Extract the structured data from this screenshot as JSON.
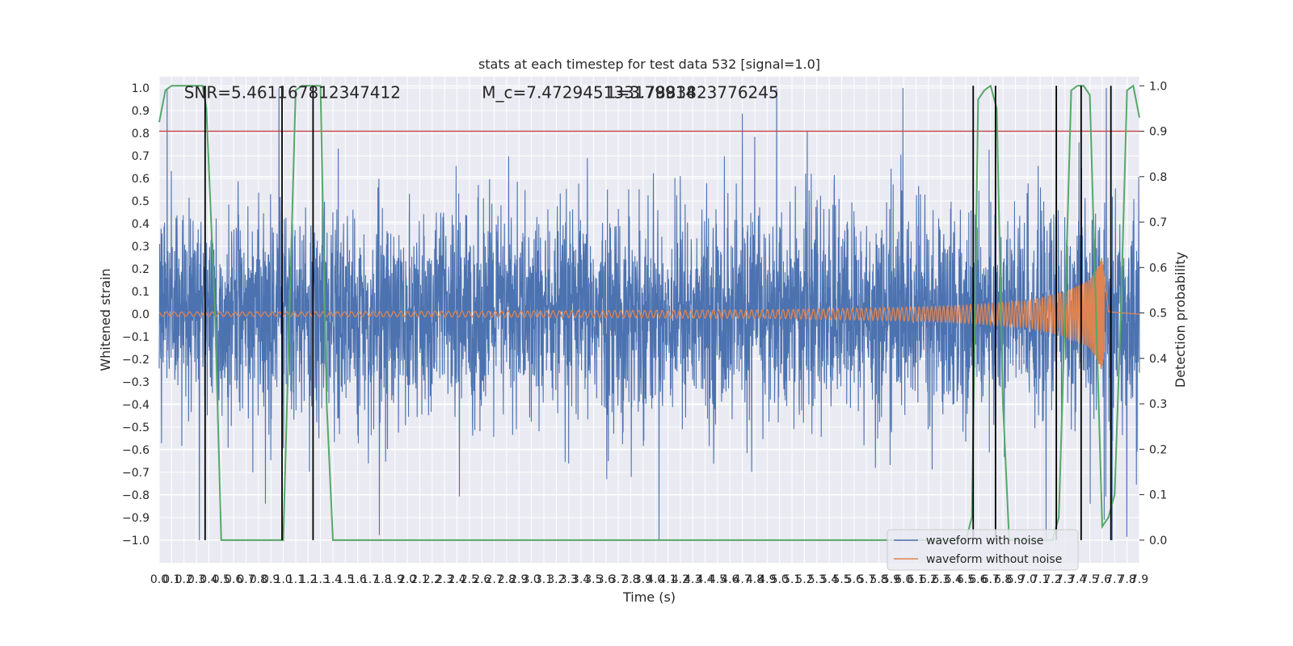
{
  "chart_data": {
    "type": "line",
    "title": "stats at each timestep for test data 532 [signal=1.0]",
    "xlabel": "Time (s)",
    "ylabel": "Whitened strain",
    "y2label": "Detection probability",
    "xlim": [
      0.0,
      7.9
    ],
    "ylim": [
      -1.1,
      1.05
    ],
    "y2lim": [
      -0.05,
      1.02
    ],
    "xticks": [
      "0.0",
      "0.1",
      "0.2",
      "0.3",
      "0.4",
      "0.5",
      "0.6",
      "0.7",
      "0.8",
      "0.9",
      "1.0",
      "1.1",
      "1.2",
      "1.3",
      "1.4",
      "1.5",
      "1.6",
      "1.7",
      "1.8",
      "1.9",
      "2.0",
      "2.1",
      "2.2",
      "2.3",
      "2.4",
      "2.5",
      "2.6",
      "2.7",
      "2.8",
      "2.9",
      "3.0",
      "3.1",
      "3.2",
      "3.3",
      "3.4",
      "3.5",
      "3.6",
      "3.7",
      "3.8",
      "3.9",
      "4.0",
      "4.1",
      "4.2",
      "4.3",
      "4.4",
      "4.5",
      "4.6",
      "4.7",
      "4.8",
      "4.9",
      "5.0",
      "5.1",
      "5.2",
      "5.3",
      "5.4",
      "5.5",
      "5.6",
      "5.7",
      "5.8",
      "5.9",
      "6.0",
      "6.1",
      "6.2",
      "6.3",
      "6.4",
      "6.5",
      "6.6",
      "6.7",
      "6.8",
      "6.9",
      "7.0",
      "7.1",
      "7.2",
      "7.3",
      "7.4",
      "7.5",
      "7.6",
      "7.7",
      "7.8",
      "7.9"
    ],
    "yticks": [
      -1.0,
      -0.9,
      -0.8,
      -0.7,
      -0.6,
      -0.5,
      -0.4,
      -0.3,
      -0.2,
      -0.1,
      0.0,
      0.1,
      0.2,
      0.3,
      0.4,
      0.5,
      0.6,
      0.7,
      0.8,
      0.9,
      1.0
    ],
    "ytick_labels": [
      "−1.0",
      "−0.9",
      "−0.8",
      "−0.7",
      "−0.6",
      "−0.5",
      "−0.4",
      "−0.3",
      "−0.2",
      "−0.1",
      "0.0",
      "0.1",
      "0.2",
      "0.3",
      "0.4",
      "0.5",
      "0.6",
      "0.7",
      "0.8",
      "0.9",
      "1.0"
    ],
    "y2ticks": [
      0.0,
      0.1,
      0.2,
      0.3,
      0.4,
      0.5,
      0.6,
      0.7,
      0.8,
      0.9,
      1.0
    ],
    "y2tick_labels": [
      "0.0",
      "0.1",
      "0.2",
      "0.3",
      "0.4",
      "0.5",
      "0.6",
      "0.7",
      "0.8",
      "0.9",
      "1.0"
    ],
    "annotations": [
      {
        "text": "SNR=5.461167812347412",
        "x": 0.2,
        "y": 0.98
      },
      {
        "text": "M_c=7.472945133179914",
        "x": 2.6,
        "y": 0.98
      },
      {
        "text": "1=3.7883823776245",
        "x": 3.6,
        "y": 0.98
      }
    ],
    "threshold": {
      "y2": 0.9,
      "color": "#c44e52"
    },
    "vertical_lines_x": [
      0.37,
      0.99,
      1.24,
      6.56,
      6.74,
      7.23,
      7.43,
      7.67
    ],
    "series": [
      {
        "name": "waveform with noise",
        "color": "#4c72b0",
        "axis": "left",
        "description": "dense noisy whitened strain, mostly within ±0.5 with spikes up to ±1.0",
        "x_range": [
          0.0,
          7.9
        ],
        "typical_amplitude": 0.45,
        "max_abs": 1.0
      },
      {
        "name": "waveform without noise",
        "color": "#dd8452",
        "axis": "left",
        "description": "chirp signal growing in amplitude, merger near 7.6 s",
        "x": [
          0.0,
          1.0,
          2.0,
          3.0,
          4.0,
          5.0,
          6.0,
          6.5,
          7.0,
          7.3,
          7.5,
          7.6,
          7.65,
          7.9
        ],
        "amplitude": [
          0.01,
          0.01,
          0.012,
          0.014,
          0.017,
          0.02,
          0.03,
          0.04,
          0.06,
          0.1,
          0.15,
          0.25,
          0.01,
          0.0
        ]
      },
      {
        "name": "detection probability",
        "color": "#55a868",
        "axis": "right",
        "x": [
          0.0,
          0.05,
          0.1,
          0.15,
          0.2,
          0.25,
          0.3,
          0.35,
          0.38,
          0.45,
          0.5,
          0.55,
          0.6,
          0.65,
          0.7,
          0.75,
          0.8,
          0.85,
          0.9,
          0.95,
          1.0,
          1.05,
          1.1,
          1.15,
          1.2,
          1.25,
          1.3,
          1.35,
          1.4,
          1.5,
          2.0,
          3.0,
          4.0,
          5.0,
          6.0,
          6.5,
          6.55,
          6.6,
          6.65,
          6.7,
          6.75,
          6.8,
          6.85,
          7.0,
          7.1,
          7.15,
          7.2,
          7.25,
          7.3,
          7.35,
          7.4,
          7.45,
          7.5,
          7.55,
          7.6,
          7.65,
          7.7,
          7.75,
          7.8,
          7.85,
          7.9
        ],
        "values": [
          0.92,
          0.99,
          1.0,
          1.0,
          1.0,
          1.0,
          1.0,
          1.0,
          0.95,
          0.5,
          0.0,
          0.0,
          0.0,
          0.0,
          0.0,
          0.0,
          0.0,
          0.0,
          0.0,
          0.0,
          0.0,
          0.5,
          0.99,
          1.0,
          1.0,
          1.0,
          1.0,
          0.3,
          0.0,
          0.0,
          0.0,
          0.0,
          0.0,
          0.0,
          0.0,
          0.0,
          0.05,
          0.97,
          0.99,
          1.0,
          0.95,
          0.3,
          0.0,
          0.0,
          0.0,
          0.0,
          0.0,
          0.05,
          0.5,
          0.99,
          1.0,
          1.0,
          0.98,
          0.5,
          0.03,
          0.05,
          0.1,
          0.5,
          0.99,
          1.0,
          0.93
        ]
      }
    ],
    "legend": {
      "location": "lower right",
      "entries": [
        {
          "label": "waveform with noise",
          "color": "#4c72b0"
        },
        {
          "label": "waveform without noise",
          "color": "#dd8452"
        }
      ]
    },
    "grid": true,
    "style": "seaborn darkgrid",
    "background": "#eaeaf2"
  }
}
